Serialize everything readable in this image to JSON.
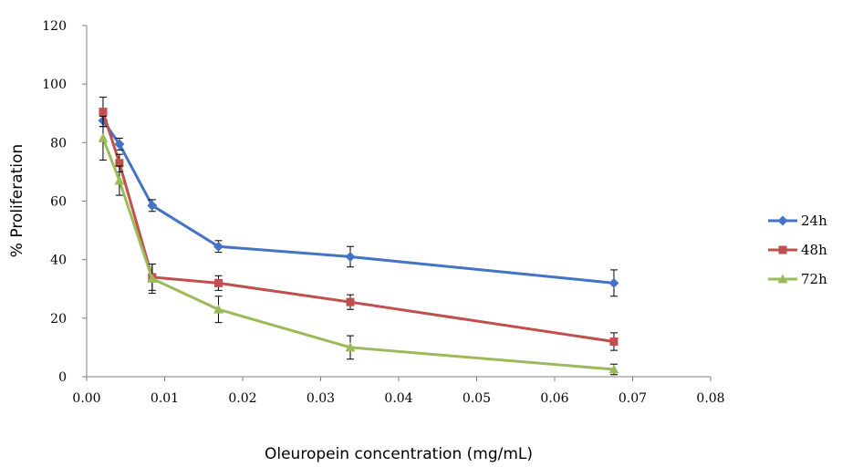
{
  "chart_data": {
    "type": "line",
    "xlabel": "Oleuropein concentration (mg/mL)",
    "ylabel": "% Proliferation",
    "xlim": [
      0,
      0.08
    ],
    "ylim": [
      0,
      120
    ],
    "x_ticks": [
      "0.00",
      "0.01",
      "0.02",
      "0.03",
      "0.04",
      "0.05",
      "0.06",
      "0.07",
      "0.08"
    ],
    "y_ticks": [
      "0",
      "20",
      "40",
      "60",
      "80",
      "100",
      "120"
    ],
    "grid": false,
    "legend_position": "right",
    "series": [
      {
        "name": "24h",
        "color": "#4472C4",
        "marker": "diamond",
        "x": [
          0.0021,
          0.0042,
          0.0084,
          0.0169,
          0.0338,
          0.0676
        ],
        "y": [
          87.5,
          79.5,
          58.5,
          44.5,
          41,
          32
        ],
        "err": [
          2,
          2,
          2,
          2,
          3.5,
          4.5
        ]
      },
      {
        "name": "48h",
        "color": "#C0504D",
        "marker": "square",
        "x": [
          0.0021,
          0.0042,
          0.0084,
          0.0169,
          0.0338,
          0.0676
        ],
        "y": [
          90.5,
          73,
          34,
          32,
          25.5,
          12
        ],
        "err": [
          5,
          3,
          4.5,
          2.5,
          2.5,
          3
        ]
      },
      {
        "name": "72h",
        "color": "#9BBB59",
        "marker": "triangle",
        "x": [
          0.0021,
          0.0042,
          0.0084,
          0.0169,
          0.0338,
          0.0676
        ],
        "y": [
          81.5,
          67,
          33.5,
          23,
          10,
          2.5
        ],
        "err": [
          7.5,
          5,
          5,
          4.5,
          4,
          1.8
        ]
      }
    ]
  }
}
